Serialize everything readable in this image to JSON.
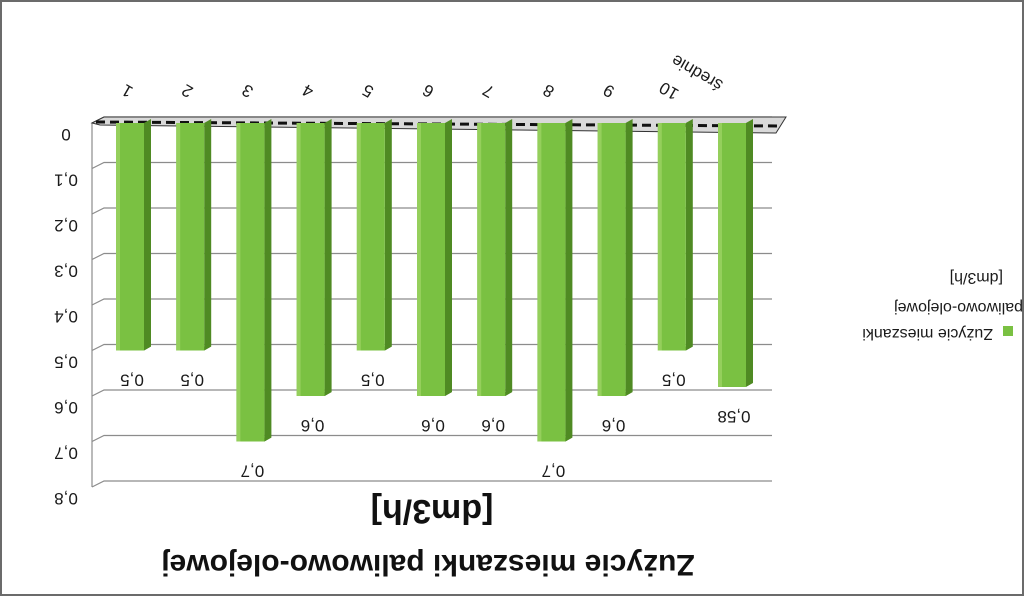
{
  "chart_data": {
    "type": "bar",
    "orientation": "mirrored (image rotated 180 degrees)",
    "categories": [
      "1",
      "2",
      "3",
      "4",
      "5",
      "6",
      "7",
      "8",
      "9",
      "10",
      "średnie"
    ],
    "series": [
      {
        "name": "Zużycie mieszanki paliwowo-olejowej [dm3/h]",
        "values": [
          0.5,
          0.5,
          0.7,
          0.6,
          0.5,
          0.6,
          0.6,
          0.7,
          0.6,
          0.5,
          0.58
        ],
        "color": "#7ac142"
      }
    ],
    "data_labels": [
      "0,5",
      "0,5",
      "0,7",
      "0,6",
      "0,5",
      "0,6",
      "0,6",
      "0,7",
      "0,6",
      "0,5",
      "0,58"
    ],
    "y_ticks": [
      "0",
      "0,1",
      "0,2",
      "0,3",
      "0,4",
      "0,5",
      "0,6",
      "0,7",
      "0,8"
    ],
    "ylim": [
      0,
      0.8
    ],
    "ylabel": "[dm3/h]",
    "title": "Zużycie mieszanki paliwowo-olejowej",
    "legend": {
      "placement": "right",
      "lines": [
        "[dm3/h]",
        "paliwowo-olejowej",
        "Zużycie mieszanki"
      ]
    },
    "grid": true,
    "colors": {
      "bar": "#7ac142",
      "bar_side": "#4f8a23",
      "bar_top": "#a6d86e",
      "grid": "#8c8c8c"
    }
  }
}
